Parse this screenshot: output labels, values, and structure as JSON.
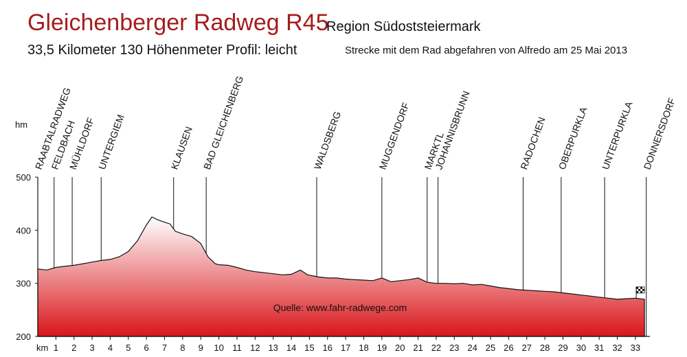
{
  "header": {
    "title": "Gleichenberger Radweg R45",
    "region": "Region Südoststeiermark",
    "info": "33,5 Kilometer  130 Höhenmeter Profil: leicht",
    "ride": "Strecke mit dem Rad abgefahren von Alfredo am 25 Mai 2013"
  },
  "colors": {
    "fill_top": "#ffffff",
    "fill_bottom": "#d9161a",
    "title": "#a51c1c"
  },
  "chart_data": {
    "type": "area",
    "ylabel": "hm",
    "xlabel": "km",
    "ylim": [
      200,
      500
    ],
    "yticks": [
      200,
      300,
      400,
      500
    ],
    "xlim": [
      0,
      33.8
    ],
    "xticks": [
      1,
      2,
      3,
      4,
      5,
      6,
      7,
      8,
      9,
      10,
      11,
      12,
      13,
      14,
      15,
      16,
      17,
      18,
      19,
      20,
      21,
      22,
      23,
      24,
      25,
      26,
      27,
      28,
      29,
      30,
      31,
      32,
      33
    ],
    "source": "Quelle: www.fahr-radwege.com",
    "profile": [
      [
        0,
        327
      ],
      [
        0.5,
        325
      ],
      [
        1,
        330
      ],
      [
        1.5,
        332
      ],
      [
        2,
        334
      ],
      [
        2.5,
        337
      ],
      [
        3,
        340
      ],
      [
        3.5,
        343
      ],
      [
        4,
        345
      ],
      [
        4.5,
        350
      ],
      [
        5,
        360
      ],
      [
        5.5,
        380
      ],
      [
        6,
        410
      ],
      [
        6.3,
        425
      ],
      [
        6.6,
        420
      ],
      [
        7,
        415
      ],
      [
        7.3,
        412
      ],
      [
        7.6,
        398
      ],
      [
        8,
        393
      ],
      [
        8.5,
        388
      ],
      [
        9,
        375
      ],
      [
        9.4,
        350
      ],
      [
        9.8,
        337
      ],
      [
        10,
        335
      ],
      [
        10.5,
        334
      ],
      [
        11,
        330
      ],
      [
        11.5,
        325
      ],
      [
        12,
        322
      ],
      [
        12.5,
        320
      ],
      [
        13,
        318
      ],
      [
        13.5,
        316
      ],
      [
        14,
        317
      ],
      [
        14.5,
        325
      ],
      [
        14.9,
        316
      ],
      [
        15.5,
        312
      ],
      [
        16,
        310
      ],
      [
        16.5,
        310
      ],
      [
        17,
        308
      ],
      [
        17.5,
        307
      ],
      [
        18,
        306
      ],
      [
        18.5,
        305
      ],
      [
        19,
        310
      ],
      [
        19.5,
        303
      ],
      [
        20,
        305
      ],
      [
        20.5,
        307
      ],
      [
        21,
        310
      ],
      [
        21.5,
        302
      ],
      [
        22,
        300
      ],
      [
        22.5,
        300
      ],
      [
        23,
        299
      ],
      [
        23.5,
        300
      ],
      [
        24,
        297
      ],
      [
        24.5,
        298
      ],
      [
        25,
        295
      ],
      [
        25.5,
        292
      ],
      [
        26,
        290
      ],
      [
        26.5,
        288
      ],
      [
        27,
        287
      ],
      [
        27.5,
        286
      ],
      [
        28,
        285
      ],
      [
        28.5,
        284
      ],
      [
        29,
        282
      ],
      [
        29.5,
        280
      ],
      [
        30,
        278
      ],
      [
        30.5,
        276
      ],
      [
        31,
        274
      ],
      [
        31.5,
        272
      ],
      [
        32,
        270
      ],
      [
        32.5,
        271
      ],
      [
        33,
        272
      ],
      [
        33.5,
        270
      ]
    ],
    "places": [
      {
        "name": "RAABTALRADWEG",
        "km": 0
      },
      {
        "name": "FELDBACH",
        "km": 0.9
      },
      {
        "name": "MÜHLDORF",
        "km": 1.9
      },
      {
        "name": "UNTERGIEM",
        "km": 3.5
      },
      {
        "name": "KLAUSEN",
        "km": 7.5
      },
      {
        "name": "BAD GLEICHENBERG",
        "km": 9.3
      },
      {
        "name": "WALDSBERG",
        "km": 15.4
      },
      {
        "name": "MUGGENDORF",
        "km": 19.0
      },
      {
        "name": "MARKTL",
        "km": 21.5
      },
      {
        "name": "JOHANNISBRUNN",
        "km": 22.1
      },
      {
        "name": "RADOCHEN",
        "km": 26.8
      },
      {
        "name": "OBERPURKLA",
        "km": 28.9
      },
      {
        "name": "UNTERPURKLA",
        "km": 31.3
      },
      {
        "name": "DONNERSDORF",
        "km": 33.6
      }
    ]
  }
}
